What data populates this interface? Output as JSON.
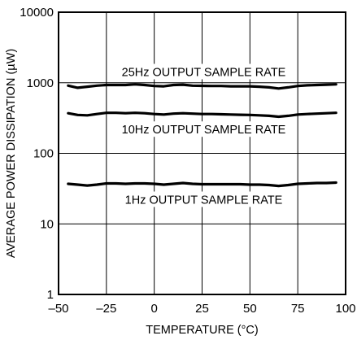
{
  "chart_data": {
    "type": "line",
    "title": "",
    "xlabel": "TEMPERATURE (°C)",
    "ylabel": "AVERAGE POWER DISSIPATION (µW)",
    "xlim": [
      -50,
      100
    ],
    "ylim": [
      1,
      10000
    ],
    "yscale": "log",
    "grid": true,
    "x_ticks": [
      "–50",
      "–25",
      "0",
      "25",
      "50",
      "75",
      "100"
    ],
    "y_ticks": [
      "1",
      "10",
      "100",
      "1000",
      "10000"
    ],
    "series": [
      {
        "name": "25Hz OUTPUT SAMPLE RATE",
        "x": [
          -45,
          -40,
          -35,
          -30,
          -25,
          -20,
          -15,
          -10,
          -5,
          0,
          5,
          10,
          15,
          20,
          25,
          30,
          35,
          40,
          45,
          50,
          55,
          60,
          65,
          70,
          75,
          80,
          85,
          90,
          95
        ],
        "y": [
          910,
          850,
          880,
          910,
          930,
          930,
          930,
          950,
          930,
          900,
          890,
          930,
          940,
          910,
          905,
          900,
          900,
          890,
          890,
          890,
          880,
          860,
          830,
          860,
          900,
          920,
          930,
          940,
          950
        ]
      },
      {
        "name": "10Hz OUTPUT SAMPLE RATE",
        "x": [
          -45,
          -40,
          -35,
          -30,
          -25,
          -20,
          -15,
          -10,
          -5,
          0,
          5,
          10,
          15,
          20,
          25,
          30,
          35,
          40,
          45,
          50,
          55,
          60,
          65,
          70,
          75,
          80,
          85,
          90,
          95
        ],
        "y": [
          370,
          350,
          345,
          360,
          375,
          375,
          370,
          375,
          370,
          360,
          355,
          365,
          370,
          365,
          360,
          360,
          358,
          355,
          352,
          350,
          345,
          340,
          330,
          340,
          355,
          360,
          365,
          370,
          375
        ]
      },
      {
        "name": "1Hz OUTPUT SAMPLE RATE",
        "x": [
          -45,
          -40,
          -35,
          -30,
          -25,
          -20,
          -15,
          -10,
          -5,
          0,
          5,
          10,
          15,
          20,
          25,
          30,
          35,
          40,
          45,
          50,
          55,
          60,
          65,
          70,
          75,
          80,
          85,
          90,
          95
        ],
        "y": [
          37,
          36,
          35,
          36,
          37.5,
          37.5,
          37,
          37.5,
          37.5,
          37,
          36,
          37,
          38,
          37,
          36.5,
          36.5,
          36.5,
          36.5,
          36.5,
          36,
          36,
          35.5,
          34.5,
          35.5,
          37,
          37.5,
          38,
          38,
          38.5
        ]
      }
    ]
  }
}
